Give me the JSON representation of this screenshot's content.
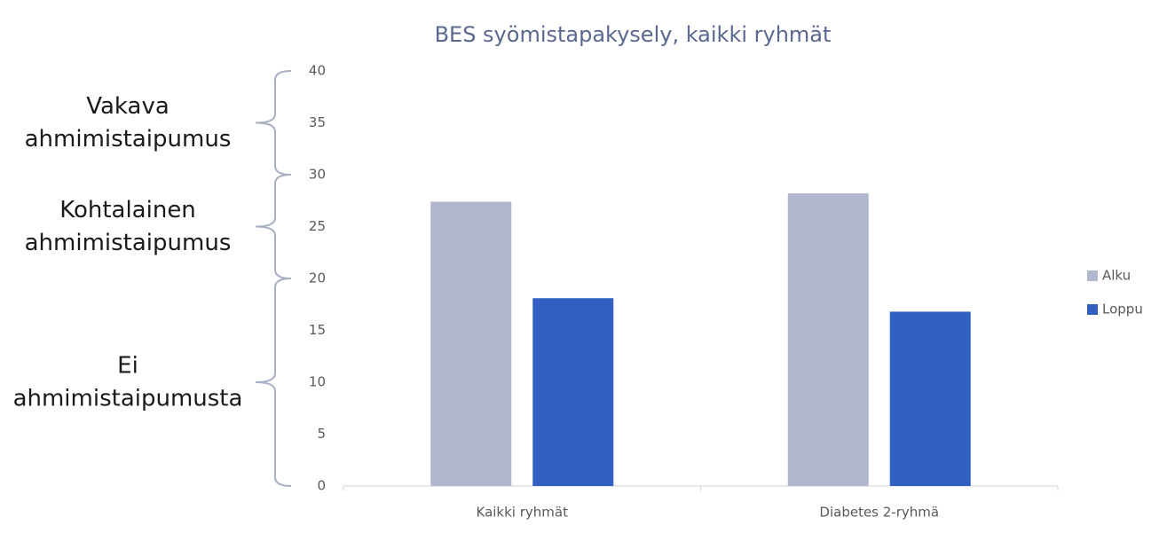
{
  "chart_data": {
    "type": "bar",
    "title": "BES syömistapakysely, kaikki ryhmät",
    "categories": [
      "Kaikki ryhmät",
      "Diabetes 2-ryhmä"
    ],
    "series": [
      {
        "name": "Alku",
        "color": "#b1b7cc",
        "values": [
          27.4,
          28.2
        ]
      },
      {
        "name": "Loppu",
        "color": "#3160c2",
        "values": [
          18.1,
          16.8
        ]
      }
    ],
    "ylim": [
      0,
      40
    ],
    "yticks": [
      0,
      5,
      10,
      15,
      20,
      25,
      30,
      35,
      40
    ],
    "reference_lines": [
      20,
      30
    ],
    "legend": "right",
    "annotations": [
      {
        "lines": [
          "Vakava",
          "ahmimistaipumus"
        ],
        "range": [
          30,
          40
        ]
      },
      {
        "lines": [
          "Kohtalainen",
          "ahmimistaipumus"
        ],
        "range": [
          20,
          30
        ]
      },
      {
        "lines": [
          "Ei",
          "ahmimistaipumusta"
        ],
        "range": [
          0,
          20
        ]
      }
    ]
  }
}
